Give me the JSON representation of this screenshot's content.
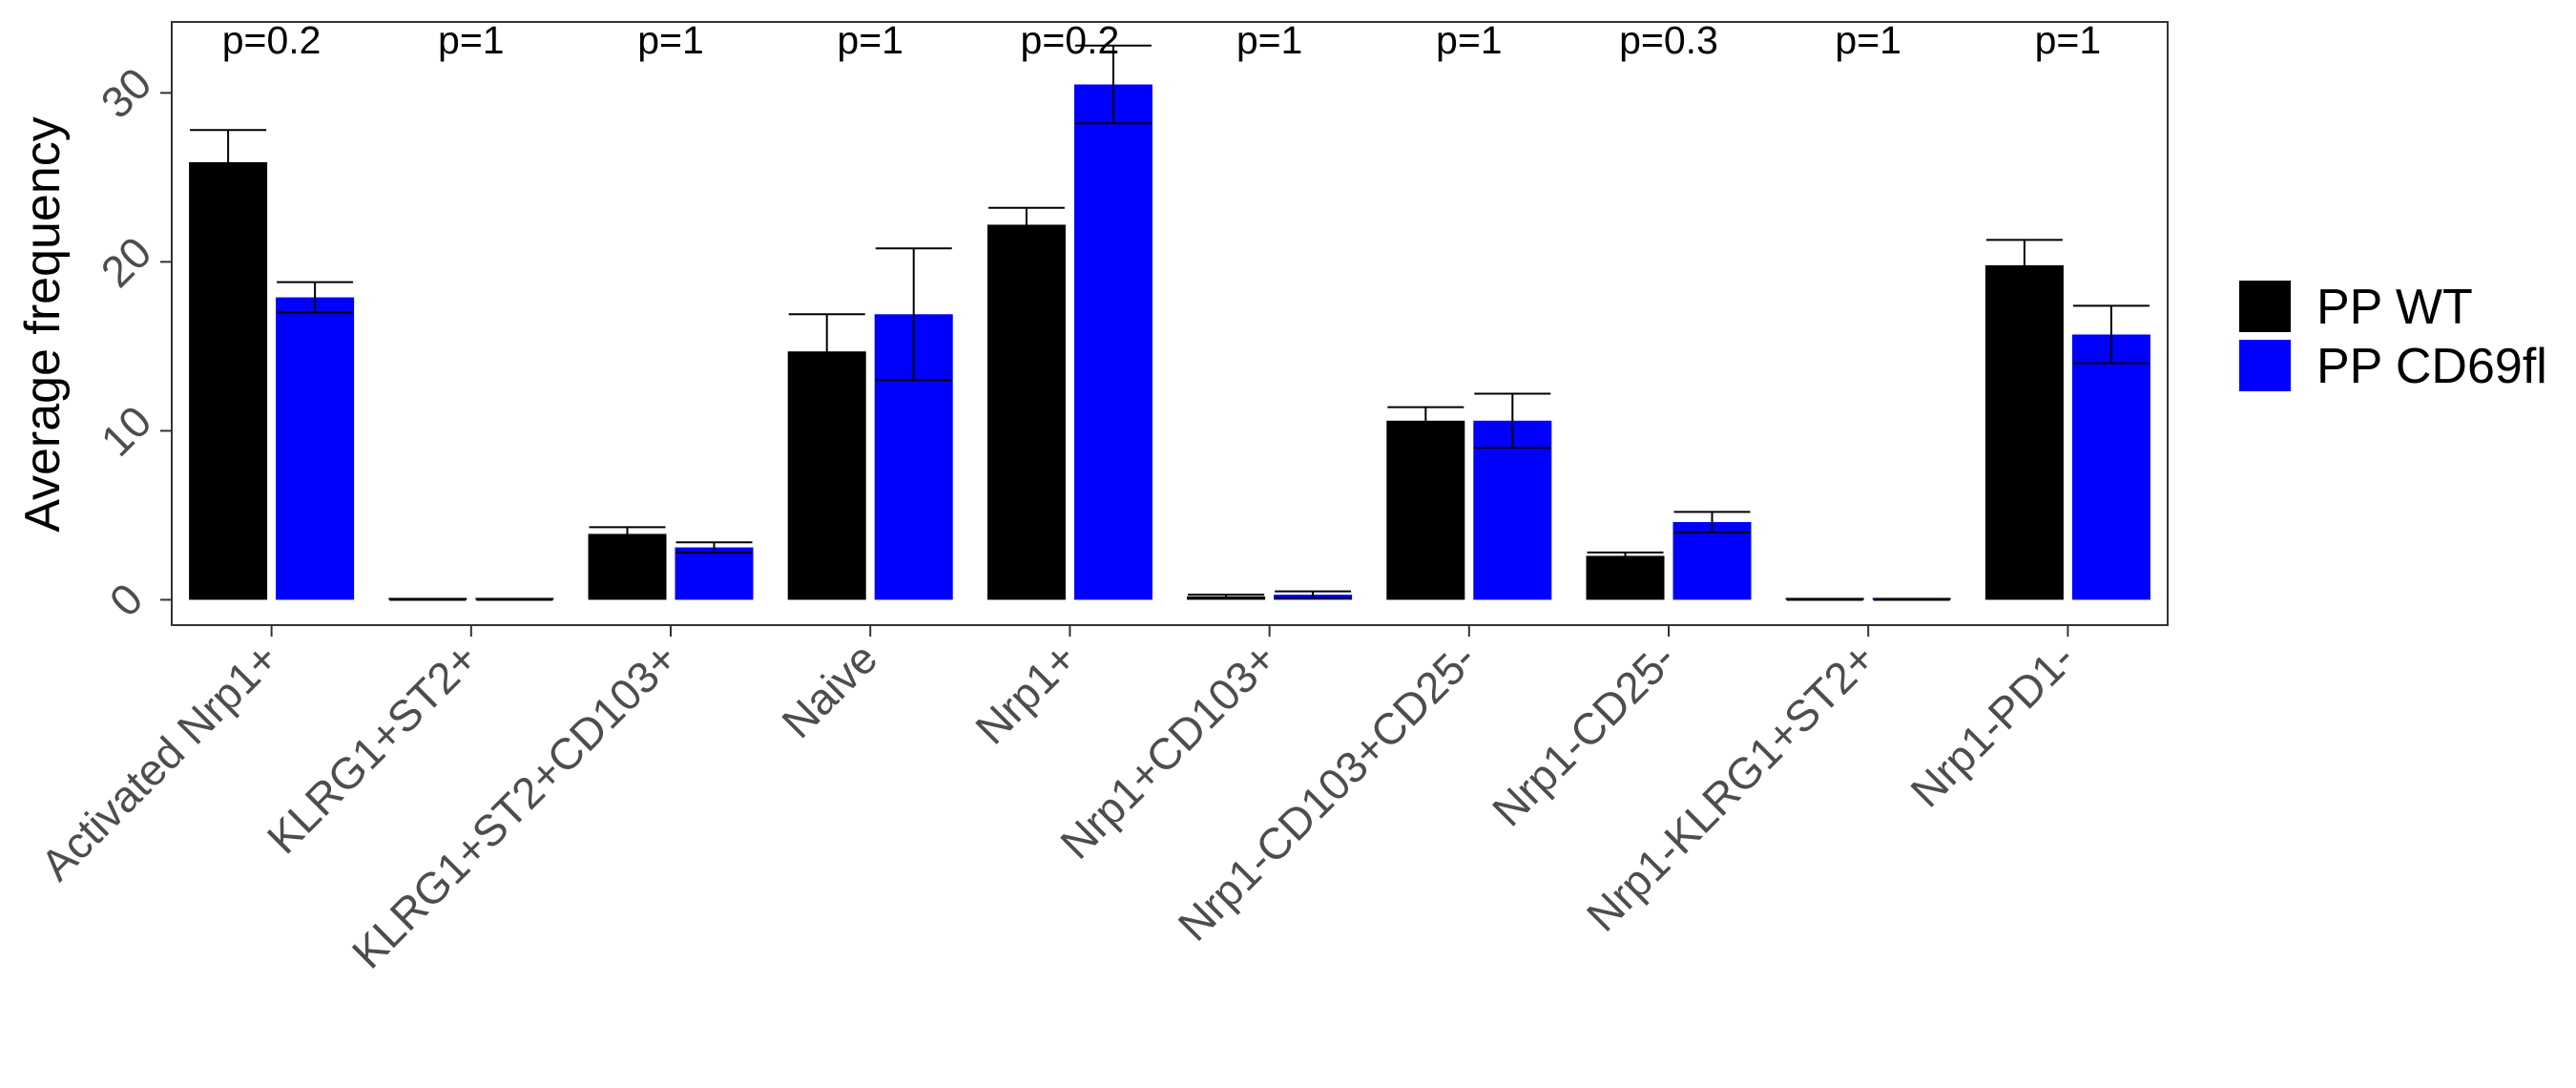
{
  "chart_data": {
    "type": "bar",
    "title": "",
    "xlabel": "",
    "ylabel": "Average frequency",
    "ylim": [
      -1.5,
      34.2
    ],
    "yticks": [
      0,
      10,
      20,
      30
    ],
    "grid": false,
    "legend_position": "right",
    "categories": [
      "Activated Nrp1+",
      "KLRG1+ST2+",
      "KLRG1+ST2+CD103+",
      "Naive",
      "Nrp1+",
      "Nrp1+CD103+",
      "Nrp1-CD103+CD25-",
      "Nrp1-CD25-",
      "Nrp1-KLRG1+ST2+",
      "Nrp1-PD1-"
    ],
    "series": [
      {
        "name": "PP WT",
        "color": "#000000",
        "values": [
          25.9,
          0.0,
          3.9,
          14.7,
          22.2,
          0.2,
          10.6,
          2.6,
          0.0,
          19.8
        ],
        "error": [
          1.9,
          0.05,
          0.4,
          2.2,
          1.0,
          0.1,
          0.8,
          0.2,
          0.05,
          1.5
        ]
      },
      {
        "name": "PP CD69fl",
        "color": "#0000ff",
        "values": [
          17.9,
          0.0,
          3.1,
          16.9,
          30.5,
          0.3,
          10.6,
          4.6,
          0.0,
          15.7
        ],
        "error": [
          0.9,
          0.05,
          0.3,
          3.9,
          2.3,
          0.2,
          1.6,
          0.6,
          0.05,
          1.7
        ]
      }
    ],
    "annotations": [
      "p=0.2",
      "p=1",
      "p=1",
      "p=1",
      "p=0.2",
      "p=1",
      "p=1",
      "p=0.3",
      "p=1",
      "p=1"
    ]
  }
}
